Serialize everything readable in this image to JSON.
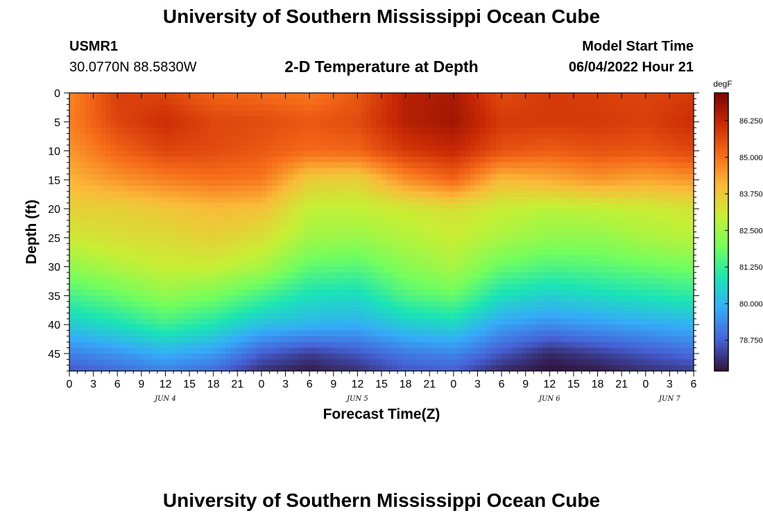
{
  "page": {
    "title": "University of Southern Mississippi Ocean Cube",
    "title_repeat": "University of Southern Mississippi Ocean Cube",
    "station": {
      "id": "USMR1",
      "coords": "30.0770N  88.5830W"
    },
    "subtitle": "2-D Temperature at Depth",
    "model_start": {
      "label": "Model Start Time",
      "value": "06/04/2022 Hour 21"
    }
  },
  "chart_data": {
    "type": "heatmap",
    "title": "2-D Temperature at Depth",
    "xlabel": "Forecast Time(Z)",
    "ylabel": "Depth (ft)",
    "x_range_hours": [
      0,
      78
    ],
    "x_ticks": [
      "0",
      "3",
      "6",
      "9",
      "12",
      "15",
      "18",
      "21",
      "0",
      "3",
      "6",
      "9",
      "12",
      "15",
      "18",
      "21",
      "0",
      "3",
      "6",
      "9",
      "12",
      "15",
      "18",
      "21",
      "0",
      "3",
      "6"
    ],
    "day_labels": [
      {
        "text": "JUN 4",
        "hour": 12
      },
      {
        "text": "JUN 5",
        "hour": 36
      },
      {
        "text": "JUN 6",
        "hour": 60
      },
      {
        "text": "JUN 7",
        "hour": 75
      }
    ],
    "y_ticks": [
      0,
      5,
      10,
      15,
      20,
      25,
      30,
      35,
      40,
      45
    ],
    "ylim": [
      0,
      48
    ],
    "colorbar": {
      "unit": "degF",
      "min": 77.7,
      "max": 87.2,
      "ticks": [
        "86.250",
        "85.000",
        "83.750",
        "82.500",
        "81.250",
        "80.000",
        "78.750"
      ],
      "colors": [
        "#30123b",
        "#4662d7",
        "#36aaf9",
        "#1ae4b6",
        "#72fe5e",
        "#c7ef34",
        "#faba39",
        "#f66b19",
        "#ca2a04",
        "#7a0403"
      ]
    },
    "time_hours": [
      0,
      6,
      12,
      18,
      24,
      30,
      36,
      42,
      48,
      54,
      60,
      66,
      72,
      78
    ],
    "depth_ft": [
      0,
      5,
      10,
      15,
      20,
      25,
      30,
      35,
      40,
      45,
      48
    ],
    "temperature_degF": [
      [
        84.7,
        85.8,
        85.7,
        85.2,
        85.1,
        84.9,
        85.4,
        86.4,
        86.6,
        85.6,
        85.9,
        85.8,
        85.7,
        85.9
      ],
      [
        84.8,
        85.7,
        86.1,
        85.7,
        85.6,
        85.4,
        85.6,
        86.4,
        86.7,
        85.9,
        85.9,
        85.9,
        85.8,
        86.1
      ],
      [
        84.5,
        85.2,
        85.7,
        85.6,
        85.4,
        85.1,
        85.2,
        85.9,
        86.2,
        85.5,
        85.3,
        85.5,
        85.4,
        85.7
      ],
      [
        84.1,
        84.5,
        84.8,
        85.0,
        84.9,
        83.7,
        83.6,
        84.6,
        85.2,
        84.0,
        84.2,
        84.5,
        84.3,
        84.5
      ],
      [
        83.6,
        83.6,
        83.8,
        84.0,
        83.9,
        82.9,
        82.9,
        83.1,
        83.3,
        83.0,
        82.8,
        82.9,
        83.0,
        83.2
      ],
      [
        83.1,
        83.3,
        83.4,
        83.6,
        83.3,
        82.5,
        82.4,
        82.7,
        83.0,
        82.6,
        82.3,
        82.3,
        82.6,
        82.8
      ],
      [
        82.3,
        82.7,
        83.0,
        83.0,
        82.6,
        81.7,
        81.6,
        82.2,
        82.6,
        81.8,
        81.5,
        81.6,
        81.8,
        82.0
      ],
      [
        81.4,
        81.8,
        82.3,
        82.0,
        81.4,
        80.8,
        80.7,
        81.5,
        81.8,
        80.8,
        80.5,
        80.7,
        80.9,
        81.1
      ],
      [
        80.4,
        80.8,
        81.3,
        80.9,
        80.2,
        80.0,
        79.9,
        80.4,
        80.6,
        79.7,
        79.4,
        79.6,
        79.8,
        80.0
      ],
      [
        79.2,
        79.5,
        79.9,
        79.6,
        78.7,
        78.3,
        78.6,
        79.1,
        79.3,
        78.6,
        78.0,
        78.3,
        78.6,
        78.9
      ],
      [
        78.6,
        78.9,
        79.2,
        78.9,
        78.1,
        77.8,
        78.1,
        78.6,
        78.7,
        78.0,
        77.7,
        77.8,
        78.1,
        78.3
      ]
    ]
  }
}
